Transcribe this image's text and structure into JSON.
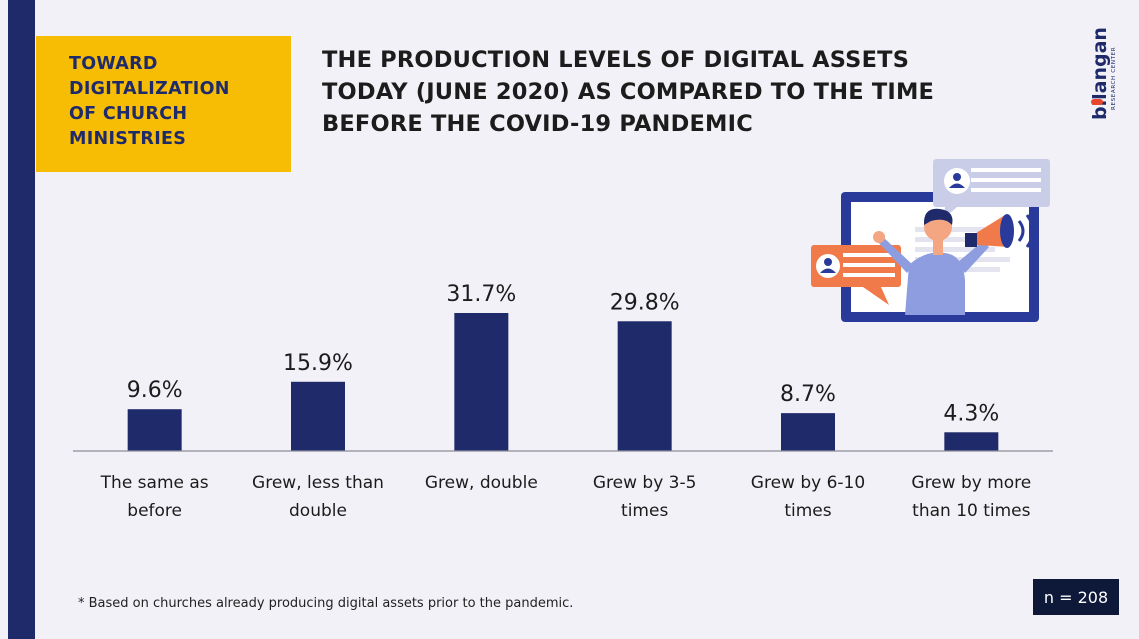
{
  "section_label": "TOWARD\nDIGITALIZATION\nOF CHURCH\nMINISTRIES",
  "title": "THE PRODUCTION LEVELS OF DIGITAL ASSETS\nTODAY (JUNE 2020) AS COMPARED TO THE TIME\nBEFORE THE COVID-19 PANDEMIC",
  "logo": {
    "wordmark": "bilangan",
    "tagline": "RESEARCH CENTER",
    "accent_color": "#e8452c"
  },
  "colors": {
    "navy": "#1f2a6b",
    "yellow": "#f7bd05",
    "background": "#f2f1f7",
    "orange": "#f07a4a"
  },
  "illustration_icon": "man-with-megaphone-on-screen",
  "footnote": "* Based on churches already producing digital assets prior to the pandemic.",
  "sample_size": "n = 208",
  "chart_data": {
    "type": "bar",
    "categories": [
      [
        "The same as",
        "before"
      ],
      [
        "Grew, less than",
        "double"
      ],
      [
        "Grew, double"
      ],
      [
        "Grew by 3-5",
        "times"
      ],
      [
        "Grew by 6-10",
        "times"
      ],
      [
        "Grew by more",
        "than 10 times"
      ]
    ],
    "values": [
      9.6,
      15.9,
      31.7,
      29.8,
      8.7,
      4.3
    ],
    "value_labels": [
      "9.6%",
      "15.9%",
      "31.7%",
      "29.8%",
      "8.7%",
      "4.3%"
    ],
    "unit": "%",
    "ylim": [
      0,
      31.7
    ],
    "bar_color": "#1f2a6b",
    "grid": false,
    "legend": "none"
  }
}
